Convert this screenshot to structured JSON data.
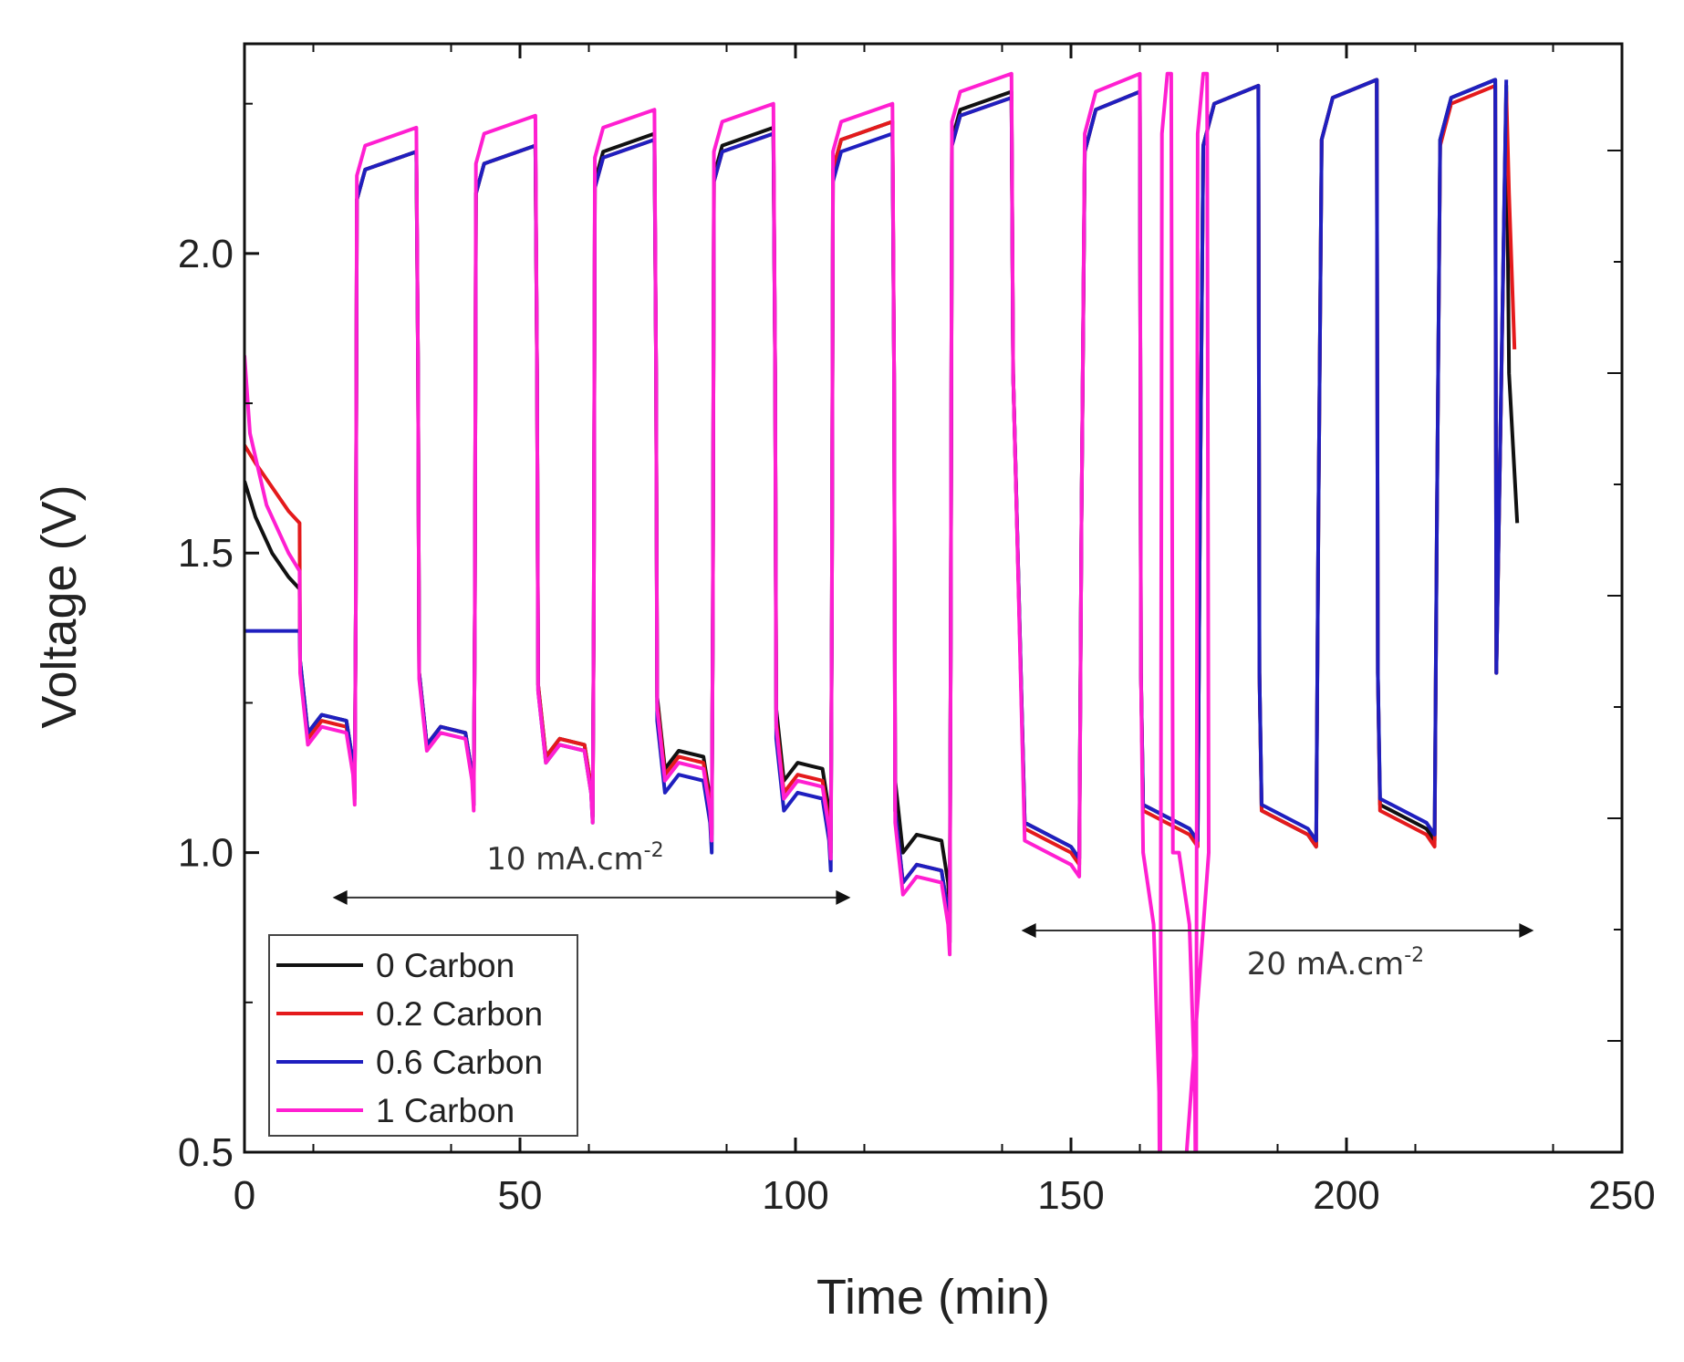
{
  "chart_data": {
    "type": "line",
    "title": "",
    "xlabel": "Time (min)",
    "ylabel": "Voltage (V)",
    "xlim": [
      0,
      250
    ],
    "ylim": [
      0.5,
      2.35
    ],
    "xticks": [
      0,
      50,
      100,
      150,
      200,
      250
    ],
    "xtick_labels": [
      "0",
      "50",
      "100",
      "150",
      "200",
      "250"
    ],
    "yticks": [
      0.5,
      1.0,
      1.5,
      2.0
    ],
    "ytick_labels": [
      "0.5",
      "1.0",
      "1.5",
      "2.0"
    ],
    "grid": false,
    "legend_position": "bottom-left",
    "colors": {
      "0 Carbon": "#111111",
      "0.2 Carbon": "#e41a1c",
      "0.6 Carbon": "#1f1fbf",
      "1 Carbon": "#ff1fd1"
    },
    "annotations": [
      {
        "text": "10 mA.cm",
        "superscript": "-2",
        "x": 60,
        "y": 0.99,
        "arrow_from_x": 16,
        "arrow_to_x": 110,
        "arrow_y": 0.925
      },
      {
        "text": "20 mA.cm",
        "superscript": "-2",
        "x": 198,
        "y": 0.815,
        "arrow_from_x": 141,
        "arrow_to_x": 234,
        "arrow_y": 0.87
      }
    ],
    "cycle_template": {
      "period_10mA_min": 21.5,
      "start_first_charge_min": 20.5
    },
    "series": [
      {
        "name": "0 Carbon",
        "initial_rest": [
          [
            0,
            1.62
          ],
          [
            2,
            1.56
          ],
          [
            5,
            1.5
          ],
          [
            8,
            1.46
          ],
          [
            10,
            1.44
          ]
        ],
        "discharge_plateaus_10mA": [
          1.22,
          1.2,
          1.18,
          1.16,
          1.14,
          1.02
        ],
        "charge_plateaus_10mA": [
          2.17,
          2.18,
          2.2,
          2.21,
          2.22,
          2.27
        ],
        "charge_plateaus_20mA": [
          2.27,
          2.28,
          2.29,
          2.29
        ],
        "discharge_plateaus_20mA": [
          1.03,
          1.06,
          1.05,
          1.06
        ],
        "end": [
          [
            229,
            2.28
          ],
          [
            229.5,
            1.8
          ],
          [
            231,
            1.55
          ]
        ]
      },
      {
        "name": "0.2 Carbon",
        "initial_rest": [
          [
            0,
            1.68
          ],
          [
            2,
            1.65
          ],
          [
            5,
            1.61
          ],
          [
            8,
            1.57
          ],
          [
            10,
            1.55
          ]
        ],
        "discharge_plateaus_10mA": [
          1.21,
          1.2,
          1.18,
          1.15,
          1.12,
          0.97
        ],
        "charge_plateaus_10mA": [
          2.17,
          2.18,
          2.19,
          2.2,
          2.22,
          2.26
        ],
        "charge_plateaus_20mA": [
          2.27,
          2.28,
          2.29,
          2.28
        ],
        "discharge_plateaus_20mA": [
          1.02,
          1.05,
          1.05,
          1.05
        ],
        "end": [
          [
            229,
            2.27
          ],
          [
            229.5,
            2.1
          ],
          [
            230.5,
            1.84
          ]
        ]
      },
      {
        "name": "0.6 Carbon",
        "initial_rest": [
          [
            0,
            1.37
          ],
          [
            5,
            1.37
          ],
          [
            10,
            1.37
          ]
        ],
        "discharge_plateaus_10mA": [
          1.22,
          1.2,
          1.17,
          1.12,
          1.09,
          0.97
        ],
        "charge_plateaus_10mA": [
          2.17,
          2.18,
          2.19,
          2.2,
          2.2,
          2.26
        ],
        "charge_plateaus_20mA": [
          2.27,
          2.28,
          2.29,
          2.29
        ],
        "discharge_plateaus_20mA": [
          1.03,
          1.06,
          1.06,
          1.07
        ],
        "end": [
          [
            229,
            2.29
          ]
        ]
      },
      {
        "name": "1 Carbon",
        "initial_rest": [
          [
            0,
            1.83
          ],
          [
            1,
            1.7
          ],
          [
            4,
            1.58
          ],
          [
            8,
            1.5
          ],
          [
            10,
            1.47
          ]
        ],
        "discharge_plateaus_10mA": [
          1.2,
          1.19,
          1.17,
          1.14,
          1.11,
          0.95
        ],
        "charge_plateaus_10mA": [
          2.21,
          2.23,
          2.24,
          2.25,
          2.25,
          2.3
        ],
        "charge_plateaus_20mA": [
          2.3,
          2.3,
          2.3,
          2.3
        ],
        "discharge_plateaus_20mA": [
          1.0,
          0.5,
          0.5,
          0.5
        ],
        "end": [
          [
            171,
            0.5
          ]
        ]
      }
    ]
  },
  "legend": {
    "items": [
      "0 Carbon",
      "0.2 Carbon",
      "0.6 Carbon",
      "1 Carbon"
    ]
  }
}
